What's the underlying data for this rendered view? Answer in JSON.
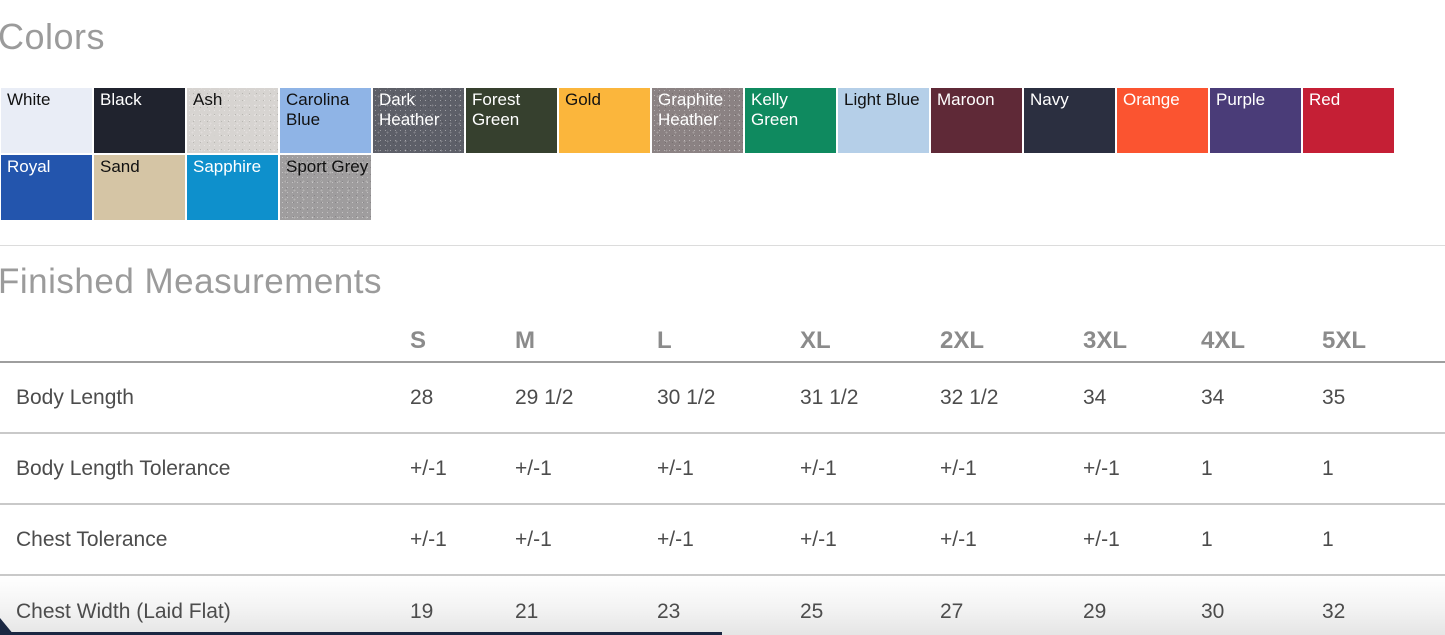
{
  "colors_section": {
    "title": "Colors",
    "swatches": [
      {
        "label": "White",
        "bg": "#e9edf6",
        "text": "#111111",
        "heather": false
      },
      {
        "label": "Black",
        "bg": "#20232e",
        "text": "#ffffff",
        "heather": false
      },
      {
        "label": "Ash",
        "bg": "#d7d4d1",
        "text": "#111111",
        "heather": true
      },
      {
        "label": "Carolina Blue",
        "bg": "#8fb4e6",
        "text": "#111111",
        "heather": false
      },
      {
        "label": "Dark Heather",
        "bg": "#5d5f68",
        "text": "#ffffff",
        "heather": true
      },
      {
        "label": "Forest Green",
        "bg": "#36402e",
        "text": "#ffffff",
        "heather": false
      },
      {
        "label": "Gold",
        "bg": "#fbb63c",
        "text": "#111111",
        "heather": false
      },
      {
        "label": "Graphite Heather",
        "bg": "#8b8283",
        "text": "#ffffff",
        "heather": true
      },
      {
        "label": "Kelly Green",
        "bg": "#0f8a5f",
        "text": "#ffffff",
        "heather": false
      },
      {
        "label": "Light Blue",
        "bg": "#b5cfe8",
        "text": "#111111",
        "heather": false
      },
      {
        "label": "Maroon",
        "bg": "#5f2937",
        "text": "#ffffff",
        "heather": false
      },
      {
        "label": "Navy",
        "bg": "#2b2f40",
        "text": "#ffffff",
        "heather": false
      },
      {
        "label": "Orange",
        "bg": "#fb5430",
        "text": "#ffffff",
        "heather": false
      },
      {
        "label": "Purple",
        "bg": "#4a3c78",
        "text": "#ffffff",
        "heather": false
      },
      {
        "label": "Red",
        "bg": "#c51f35",
        "text": "#ffffff",
        "heather": false
      },
      {
        "label": "Royal",
        "bg": "#2355ad",
        "text": "#ffffff",
        "heather": false
      },
      {
        "label": "Sand",
        "bg": "#d5c5a5",
        "text": "#111111",
        "heather": false
      },
      {
        "label": "Sapphire",
        "bg": "#0e90cc",
        "text": "#ffffff",
        "heather": false
      },
      {
        "label": "Sport Grey",
        "bg": "#9f9d9e",
        "text": "#111111",
        "heather": true
      }
    ]
  },
  "measurements_section": {
    "title": "Finished Measurements",
    "columns": [
      "S",
      "M",
      "L",
      "XL",
      "2XL",
      "3XL",
      "4XL",
      "5XL"
    ],
    "rows": [
      {
        "label": "Body Length",
        "values": [
          "28",
          "29 1/2",
          "30 1/2",
          "31 1/2",
          "32 1/2",
          "34",
          "34",
          "35"
        ]
      },
      {
        "label": "Body Length Tolerance",
        "values": [
          "+/-1",
          "+/-1",
          "+/-1",
          "+/-1",
          "+/-1",
          "+/-1",
          "1",
          "1"
        ]
      },
      {
        "label": "Chest Tolerance",
        "values": [
          "+/-1",
          "+/-1",
          "+/-1",
          "+/-1",
          "+/-1",
          "+/-1",
          "1",
          "1"
        ]
      },
      {
        "label": "Chest Width (Laid Flat)",
        "values": [
          "19",
          "21",
          "23",
          "25",
          "27",
          "29",
          "30",
          "32"
        ]
      }
    ]
  },
  "accents": {
    "navy": "#1a2742"
  }
}
